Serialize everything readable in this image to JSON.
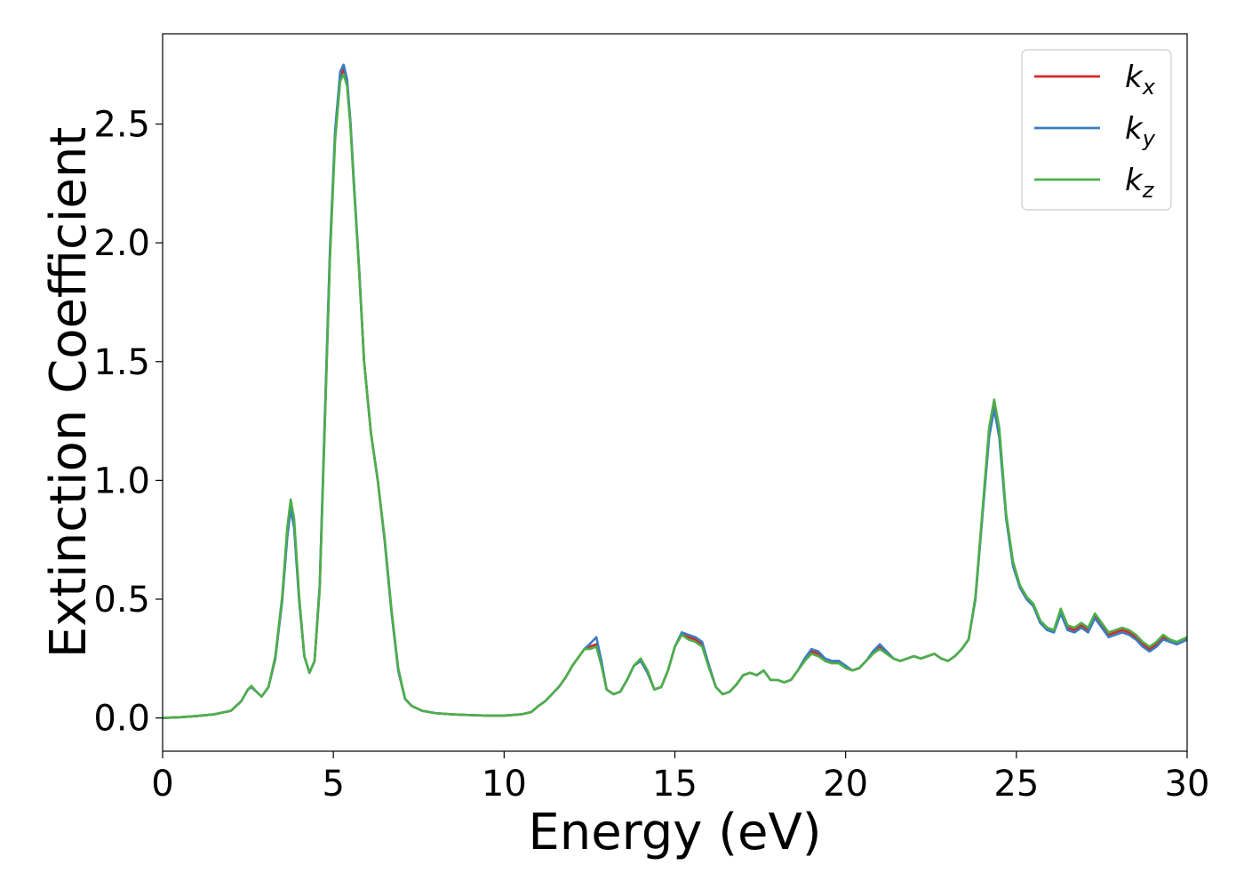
{
  "chart_data": {
    "type": "line",
    "xlabel": "Energy (eV)",
    "ylabel": "Extinction Coefficient",
    "xlim": [
      0,
      30
    ],
    "ylim": [
      -0.14,
      2.88
    ],
    "xticks": [
      0,
      5,
      10,
      15,
      20,
      25,
      30
    ],
    "xtick_labels": [
      "0",
      "5",
      "10",
      "15",
      "20",
      "25",
      "30"
    ],
    "yticks": [
      0.0,
      0.5,
      1.0,
      1.5,
      2.0,
      2.5
    ],
    "ytick_labels": [
      "0.0",
      "0.5",
      "1.0",
      "1.5",
      "2.0",
      "2.5"
    ],
    "grid": false,
    "legend_position": "top-right",
    "series": [
      {
        "name": "k_x",
        "legend_base": "k",
        "legend_sub": "x",
        "color": "#d62728",
        "x": [
          0,
          0.5,
          1.0,
          1.5,
          2.0,
          2.3,
          2.5,
          2.6,
          2.75,
          2.9,
          3.1,
          3.3,
          3.5,
          3.65,
          3.75,
          3.85,
          4.0,
          4.15,
          4.3,
          4.45,
          4.6,
          4.75,
          4.9,
          5.05,
          5.2,
          5.3,
          5.4,
          5.5,
          5.6,
          5.75,
          5.9,
          6.1,
          6.3,
          6.5,
          6.7,
          6.9,
          7.1,
          7.3,
          7.6,
          8.0,
          8.5,
          9.0,
          9.5,
          10.0,
          10.5,
          10.8,
          11.0,
          11.2,
          11.4,
          11.6,
          11.8,
          12.0,
          12.2,
          12.35,
          12.5,
          12.7,
          12.85,
          13.0,
          13.2,
          13.4,
          13.6,
          13.8,
          14.0,
          14.2,
          14.4,
          14.6,
          14.8,
          15.0,
          15.2,
          15.4,
          15.6,
          15.8,
          16.0,
          16.2,
          16.4,
          16.6,
          16.8,
          17.0,
          17.2,
          17.4,
          17.6,
          17.8,
          18.0,
          18.2,
          18.4,
          18.6,
          18.8,
          19.0,
          19.2,
          19.4,
          19.6,
          19.8,
          20.0,
          20.2,
          20.4,
          20.6,
          20.8,
          21.0,
          21.2,
          21.4,
          21.6,
          21.8,
          22.0,
          22.2,
          22.4,
          22.6,
          22.8,
          23.0,
          23.2,
          23.4,
          23.6,
          23.8,
          24.0,
          24.2,
          24.35,
          24.5,
          24.7,
          24.9,
          25.1,
          25.3,
          25.5,
          25.7,
          25.9,
          26.1,
          26.3,
          26.5,
          26.7,
          26.9,
          27.1,
          27.3,
          27.5,
          27.7,
          27.9,
          28.1,
          28.3,
          28.5,
          28.7,
          28.9,
          29.1,
          29.3,
          29.5,
          29.7,
          29.85,
          30.0
        ],
        "y": [
          0.0,
          0.003,
          0.008,
          0.015,
          0.03,
          0.07,
          0.12,
          0.13,
          0.11,
          0.09,
          0.13,
          0.25,
          0.5,
          0.78,
          0.9,
          0.82,
          0.5,
          0.26,
          0.19,
          0.24,
          0.55,
          1.25,
          1.95,
          2.45,
          2.7,
          2.73,
          2.68,
          2.5,
          2.25,
          1.9,
          1.5,
          1.2,
          1.0,
          0.75,
          0.45,
          0.2,
          0.08,
          0.05,
          0.03,
          0.02,
          0.015,
          0.012,
          0.01,
          0.01,
          0.015,
          0.025,
          0.05,
          0.07,
          0.1,
          0.13,
          0.17,
          0.22,
          0.26,
          0.29,
          0.3,
          0.31,
          0.23,
          0.12,
          0.1,
          0.11,
          0.16,
          0.22,
          0.24,
          0.19,
          0.12,
          0.13,
          0.2,
          0.3,
          0.35,
          0.34,
          0.33,
          0.31,
          0.22,
          0.13,
          0.1,
          0.11,
          0.14,
          0.18,
          0.19,
          0.18,
          0.2,
          0.16,
          0.16,
          0.15,
          0.16,
          0.2,
          0.24,
          0.28,
          0.27,
          0.24,
          0.23,
          0.24,
          0.21,
          0.2,
          0.21,
          0.24,
          0.27,
          0.3,
          0.28,
          0.25,
          0.24,
          0.25,
          0.26,
          0.25,
          0.26,
          0.27,
          0.25,
          0.24,
          0.26,
          0.29,
          0.33,
          0.5,
          0.85,
          1.2,
          1.32,
          1.2,
          0.85,
          0.65,
          0.55,
          0.5,
          0.47,
          0.4,
          0.38,
          0.37,
          0.45,
          0.38,
          0.37,
          0.39,
          0.37,
          0.43,
          0.39,
          0.35,
          0.36,
          0.37,
          0.36,
          0.34,
          0.31,
          0.29,
          0.31,
          0.34,
          0.32,
          0.31,
          0.32,
          0.33
        ]
      },
      {
        "name": "k_y",
        "legend_base": "k",
        "legend_sub": "y",
        "color": "#3a7dc0",
        "x": [
          0,
          0.5,
          1.0,
          1.5,
          2.0,
          2.3,
          2.5,
          2.6,
          2.75,
          2.9,
          3.1,
          3.3,
          3.5,
          3.65,
          3.75,
          3.85,
          4.0,
          4.15,
          4.3,
          4.45,
          4.6,
          4.75,
          4.9,
          5.05,
          5.2,
          5.3,
          5.4,
          5.5,
          5.6,
          5.75,
          5.9,
          6.1,
          6.3,
          6.5,
          6.7,
          6.9,
          7.1,
          7.3,
          7.6,
          8.0,
          8.5,
          9.0,
          9.5,
          10.0,
          10.5,
          10.8,
          11.0,
          11.2,
          11.4,
          11.6,
          11.8,
          12.0,
          12.2,
          12.35,
          12.5,
          12.7,
          12.85,
          13.0,
          13.2,
          13.4,
          13.6,
          13.8,
          14.0,
          14.2,
          14.4,
          14.6,
          14.8,
          15.0,
          15.2,
          15.4,
          15.6,
          15.8,
          16.0,
          16.2,
          16.4,
          16.6,
          16.8,
          17.0,
          17.2,
          17.4,
          17.6,
          17.8,
          18.0,
          18.2,
          18.4,
          18.6,
          18.8,
          19.0,
          19.2,
          19.4,
          19.6,
          19.8,
          20.0,
          20.2,
          20.4,
          20.6,
          20.8,
          21.0,
          21.2,
          21.4,
          21.6,
          21.8,
          22.0,
          22.2,
          22.4,
          22.6,
          22.8,
          23.0,
          23.2,
          23.4,
          23.6,
          23.8,
          24.0,
          24.2,
          24.35,
          24.5,
          24.7,
          24.9,
          25.1,
          25.3,
          25.5,
          25.7,
          25.9,
          26.1,
          26.3,
          26.5,
          26.7,
          26.9,
          27.1,
          27.3,
          27.5,
          27.7,
          27.9,
          28.1,
          28.3,
          28.5,
          28.7,
          28.9,
          29.1,
          29.3,
          29.5,
          29.7,
          29.85,
          30.0
        ],
        "y": [
          0.0,
          0.003,
          0.008,
          0.015,
          0.03,
          0.07,
          0.12,
          0.13,
          0.11,
          0.09,
          0.13,
          0.25,
          0.49,
          0.76,
          0.88,
          0.8,
          0.49,
          0.26,
          0.19,
          0.24,
          0.56,
          1.27,
          1.97,
          2.47,
          2.72,
          2.75,
          2.69,
          2.51,
          2.26,
          1.9,
          1.5,
          1.2,
          1.0,
          0.75,
          0.45,
          0.2,
          0.08,
          0.05,
          0.03,
          0.02,
          0.015,
          0.012,
          0.01,
          0.01,
          0.015,
          0.025,
          0.05,
          0.07,
          0.1,
          0.13,
          0.17,
          0.22,
          0.26,
          0.29,
          0.31,
          0.34,
          0.24,
          0.12,
          0.1,
          0.11,
          0.16,
          0.22,
          0.24,
          0.19,
          0.12,
          0.13,
          0.2,
          0.3,
          0.36,
          0.35,
          0.34,
          0.32,
          0.22,
          0.13,
          0.1,
          0.11,
          0.14,
          0.18,
          0.19,
          0.18,
          0.2,
          0.16,
          0.16,
          0.15,
          0.16,
          0.2,
          0.25,
          0.29,
          0.28,
          0.25,
          0.24,
          0.24,
          0.22,
          0.2,
          0.21,
          0.24,
          0.28,
          0.31,
          0.28,
          0.25,
          0.24,
          0.25,
          0.26,
          0.25,
          0.26,
          0.27,
          0.25,
          0.24,
          0.26,
          0.29,
          0.33,
          0.5,
          0.84,
          1.18,
          1.3,
          1.18,
          0.84,
          0.64,
          0.55,
          0.5,
          0.47,
          0.4,
          0.37,
          0.36,
          0.44,
          0.37,
          0.36,
          0.38,
          0.36,
          0.42,
          0.38,
          0.34,
          0.35,
          0.36,
          0.35,
          0.33,
          0.3,
          0.28,
          0.3,
          0.33,
          0.32,
          0.31,
          0.32,
          0.33
        ]
      },
      {
        "name": "k_z",
        "legend_base": "k",
        "legend_sub": "z",
        "color": "#4daf4a",
        "x": [
          0,
          0.5,
          1.0,
          1.5,
          2.0,
          2.3,
          2.5,
          2.6,
          2.75,
          2.9,
          3.1,
          3.3,
          3.5,
          3.65,
          3.75,
          3.85,
          4.0,
          4.15,
          4.3,
          4.45,
          4.6,
          4.75,
          4.9,
          5.05,
          5.2,
          5.3,
          5.4,
          5.5,
          5.6,
          5.75,
          5.9,
          6.1,
          6.3,
          6.5,
          6.7,
          6.9,
          7.1,
          7.3,
          7.6,
          8.0,
          8.5,
          9.0,
          9.5,
          10.0,
          10.5,
          10.8,
          11.0,
          11.2,
          11.4,
          11.6,
          11.8,
          12.0,
          12.2,
          12.35,
          12.5,
          12.7,
          12.85,
          13.0,
          13.2,
          13.4,
          13.6,
          13.8,
          14.0,
          14.2,
          14.4,
          14.6,
          14.8,
          15.0,
          15.2,
          15.4,
          15.6,
          15.8,
          16.0,
          16.2,
          16.4,
          16.6,
          16.8,
          17.0,
          17.2,
          17.4,
          17.6,
          17.8,
          18.0,
          18.2,
          18.4,
          18.6,
          18.8,
          19.0,
          19.2,
          19.4,
          19.6,
          19.8,
          20.0,
          20.2,
          20.4,
          20.6,
          20.8,
          21.0,
          21.2,
          21.4,
          21.6,
          21.8,
          22.0,
          22.2,
          22.4,
          22.6,
          22.8,
          23.0,
          23.2,
          23.4,
          23.6,
          23.8,
          24.0,
          24.2,
          24.35,
          24.5,
          24.7,
          24.9,
          25.1,
          25.3,
          25.5,
          25.7,
          25.9,
          26.1,
          26.3,
          26.5,
          26.7,
          26.9,
          27.1,
          27.3,
          27.5,
          27.7,
          27.9,
          28.1,
          28.3,
          28.5,
          28.7,
          28.9,
          29.1,
          29.3,
          29.5,
          29.7,
          29.85,
          30.0
        ],
        "y": [
          0.0,
          0.003,
          0.008,
          0.015,
          0.03,
          0.07,
          0.12,
          0.135,
          0.11,
          0.09,
          0.13,
          0.26,
          0.51,
          0.8,
          0.92,
          0.84,
          0.51,
          0.26,
          0.19,
          0.24,
          0.54,
          1.23,
          1.93,
          2.43,
          2.68,
          2.71,
          2.66,
          2.49,
          2.24,
          1.89,
          1.5,
          1.2,
          1.0,
          0.76,
          0.46,
          0.21,
          0.08,
          0.05,
          0.03,
          0.02,
          0.015,
          0.012,
          0.01,
          0.01,
          0.015,
          0.025,
          0.05,
          0.07,
          0.1,
          0.13,
          0.17,
          0.22,
          0.26,
          0.29,
          0.29,
          0.3,
          0.22,
          0.12,
          0.1,
          0.11,
          0.16,
          0.22,
          0.25,
          0.2,
          0.12,
          0.13,
          0.2,
          0.3,
          0.35,
          0.33,
          0.32,
          0.3,
          0.21,
          0.13,
          0.1,
          0.11,
          0.14,
          0.18,
          0.19,
          0.18,
          0.2,
          0.16,
          0.16,
          0.15,
          0.16,
          0.2,
          0.24,
          0.27,
          0.26,
          0.24,
          0.23,
          0.23,
          0.21,
          0.2,
          0.21,
          0.24,
          0.27,
          0.29,
          0.27,
          0.25,
          0.24,
          0.25,
          0.26,
          0.25,
          0.26,
          0.27,
          0.25,
          0.24,
          0.26,
          0.29,
          0.33,
          0.51,
          0.86,
          1.22,
          1.34,
          1.22,
          0.86,
          0.66,
          0.56,
          0.51,
          0.48,
          0.41,
          0.38,
          0.37,
          0.46,
          0.39,
          0.38,
          0.4,
          0.38,
          0.44,
          0.4,
          0.36,
          0.37,
          0.38,
          0.37,
          0.35,
          0.32,
          0.3,
          0.32,
          0.35,
          0.33,
          0.32,
          0.33,
          0.34
        ]
      }
    ]
  }
}
